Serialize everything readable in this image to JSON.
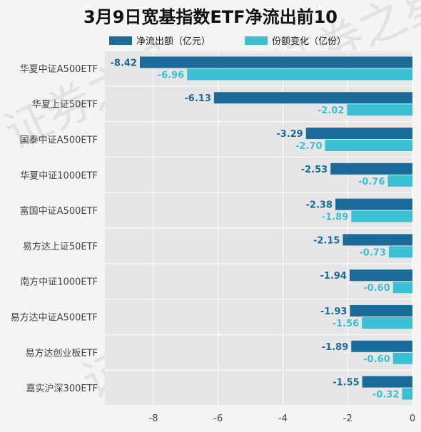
{
  "chart_data": {
    "type": "bar",
    "orientation": "horizontal",
    "title": "3月9日宽基指数ETF净流出前10",
    "categories": [
      "华夏中证A500ETF",
      "华夏上证50ETF",
      "国泰中证A500ETF",
      "华夏中证1000ETF",
      "富国中证A500ETF",
      "易方达上证50ETF",
      "南方中证1000ETF",
      "易方达中证A500ETF",
      "易方达创业板ETF",
      "嘉实沪深300ETF"
    ],
    "series": [
      {
        "name": "净流出额（亿元）",
        "color": "#1a6b9a",
        "values": [
          -8.42,
          -6.13,
          -3.29,
          -2.53,
          -2.38,
          -2.15,
          -1.94,
          -1.93,
          -1.89,
          -1.55
        ],
        "labels": [
          "-8.42",
          "-6.13",
          "-3.29",
          "-2.53",
          "-2.38",
          "-2.15",
          "-1.94",
          "-1.93",
          "-1.89",
          "-1.55"
        ]
      },
      {
        "name": "份额变化（亿份）",
        "color": "#3cc0d3",
        "values": [
          -6.96,
          -2.02,
          -2.7,
          -0.76,
          -1.89,
          -0.73,
          -0.6,
          -1.56,
          -0.6,
          -0.32
        ],
        "labels": [
          "-6.96",
          "-2.02",
          "-2.70",
          "-0.76",
          "-1.89",
          "-0.73",
          "-0.60",
          "-1.56",
          "-0.60",
          "-0.32"
        ]
      }
    ],
    "xlim": [
      -9.5,
      0
    ],
    "xticks": [
      -8,
      -6,
      -4,
      -2,
      0
    ],
    "xtick_labels": [
      "-8",
      "-6",
      "-4",
      "-2",
      "0"
    ],
    "grid": true,
    "legend": "top",
    "plot_background": "#e6e6e6",
    "watermark": "证券之星"
  }
}
